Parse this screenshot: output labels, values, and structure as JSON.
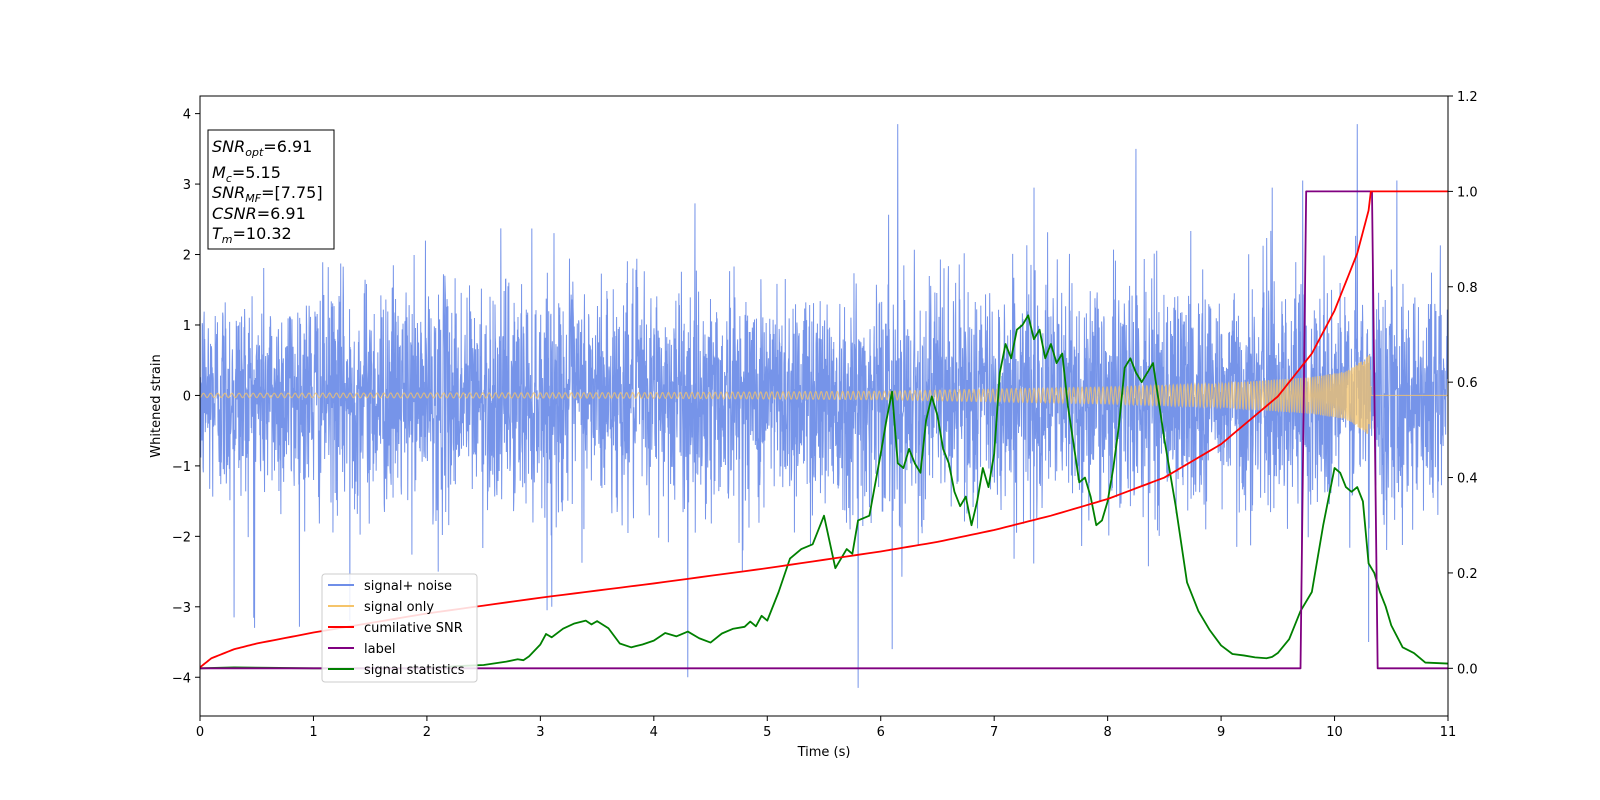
{
  "chart_data": {
    "type": "line",
    "title": "",
    "xlabel": "Time (s)",
    "ylabel": "Whitened strain",
    "y2label": "",
    "xlim": [
      0,
      11
    ],
    "ylim": [
      -4.55,
      4.25
    ],
    "y2lim": [
      -0.1,
      1.2
    ],
    "x_ticks": [
      0,
      1,
      2,
      3,
      4,
      5,
      6,
      7,
      8,
      9,
      10,
      11
    ],
    "y_ticks": [
      -4,
      -3,
      -2,
      -1,
      0,
      1,
      2,
      3,
      4
    ],
    "y2_ticks": [
      0.0,
      0.2,
      0.4,
      0.6,
      0.8,
      1.0,
      1.2
    ],
    "grid": false,
    "legend_position": "lower-left",
    "annotation": [
      {
        "key": "opt",
        "base": "SNR",
        "sub": "opt",
        "value": "=6.91"
      },
      {
        "key": "mc",
        "base": "M",
        "sub": "c",
        "value": "=5.15"
      },
      {
        "key": "mf",
        "base": "SNR",
        "sub": "MF",
        "value": "=[7.75]"
      },
      {
        "key": "csnr",
        "base": "CSNR",
        "sub": "",
        "value": "=6.91"
      },
      {
        "key": "tm",
        "base": "T",
        "sub": "m",
        "value": "=10.32"
      }
    ],
    "series": [
      {
        "name": "signal+ noise",
        "axis": "left",
        "color": "#6f8ee8",
        "kind": "noise",
        "sample_rate_hz": 409.6,
        "noise_amplitude": [
          [
            0,
            0.78
          ],
          [
            6,
            0.8
          ],
          [
            11,
            0.82
          ]
        ],
        "outliers": [
          [
            0.3,
            -3.15
          ],
          [
            0.48,
            -3.3
          ],
          [
            1.32,
            -3.2
          ],
          [
            2.1,
            -2.5
          ],
          [
            3.1,
            -3.0
          ],
          [
            4.3,
            -4.0
          ],
          [
            5.8,
            -4.15
          ],
          [
            6.15,
            3.85
          ],
          [
            6.1,
            -3.6
          ],
          [
            7.35,
            2.95
          ],
          [
            8.25,
            3.5
          ],
          [
            9.45,
            2.95
          ],
          [
            9.72,
            3.05
          ],
          [
            10.3,
            -3.5
          ],
          [
            10.55,
            3.05
          ],
          [
            10.2,
            3.85
          ]
        ]
      },
      {
        "name": "signal only",
        "axis": "left",
        "color": "#f5c46a",
        "kind": "chirp",
        "merger_time": 10.32,
        "amplitude": [
          [
            0,
            0.03
          ],
          [
            4,
            0.04
          ],
          [
            6,
            0.06
          ],
          [
            8,
            0.12
          ],
          [
            9,
            0.17
          ],
          [
            9.8,
            0.26
          ],
          [
            10.1,
            0.34
          ],
          [
            10.25,
            0.5
          ],
          [
            10.32,
            0.6
          ],
          [
            10.33,
            0
          ]
        ]
      },
      {
        "name": "cumilative SNR",
        "axis": "right",
        "color": "#ff0000",
        "x": [
          0,
          0.1,
          0.3,
          0.5,
          1,
          2,
          3,
          4,
          5,
          6,
          6.5,
          7,
          7.5,
          8,
          8.5,
          9,
          9.5,
          9.8,
          10,
          10.2,
          10.3,
          10.32,
          11
        ],
        "y": [
          0.002,
          0.021,
          0.04,
          0.052,
          0.075,
          0.115,
          0.148,
          0.178,
          0.21,
          0.245,
          0.265,
          0.29,
          0.32,
          0.355,
          0.4,
          0.47,
          0.57,
          0.66,
          0.75,
          0.87,
          0.96,
          1.0,
          1.0
        ]
      },
      {
        "name": "label",
        "axis": "right",
        "color": "#800080",
        "x": [
          0,
          9.7,
          9.75,
          10.33,
          10.38,
          11
        ],
        "y": [
          0,
          0,
          1,
          1,
          0,
          0
        ]
      },
      {
        "name": "signal statistics",
        "axis": "right",
        "color": "#008000",
        "x": [
          0,
          0.3,
          0.6,
          1,
          1.5,
          2,
          2.3,
          2.5,
          2.7,
          2.8,
          2.85,
          2.9,
          3.0,
          3.05,
          3.1,
          3.2,
          3.3,
          3.4,
          3.45,
          3.5,
          3.6,
          3.7,
          3.8,
          3.9,
          4.0,
          4.1,
          4.2,
          4.3,
          4.4,
          4.5,
          4.6,
          4.7,
          4.8,
          4.85,
          4.9,
          4.95,
          5.0,
          5.1,
          5.2,
          5.3,
          5.4,
          5.5,
          5.6,
          5.7,
          5.75,
          5.8,
          5.9,
          6.0,
          6.05,
          6.1,
          6.15,
          6.2,
          6.25,
          6.3,
          6.35,
          6.4,
          6.45,
          6.5,
          6.55,
          6.6,
          6.65,
          6.7,
          6.75,
          6.8,
          6.85,
          6.9,
          6.95,
          7.0,
          7.05,
          7.1,
          7.15,
          7.2,
          7.25,
          7.3,
          7.35,
          7.4,
          7.45,
          7.5,
          7.55,
          7.6,
          7.65,
          7.7,
          7.75,
          7.8,
          7.85,
          7.9,
          7.95,
          8.0,
          8.05,
          8.1,
          8.15,
          8.2,
          8.25,
          8.3,
          8.4,
          8.5,
          8.55,
          8.6,
          8.7,
          8.8,
          8.9,
          9.0,
          9.1,
          9.2,
          9.3,
          9.4,
          9.45,
          9.5,
          9.6,
          9.7,
          9.8,
          9.9,
          10.0,
          10.05,
          10.1,
          10.15,
          10.2,
          10.25,
          10.3,
          10.35,
          10.4,
          10.45,
          10.5,
          10.6,
          10.7,
          10.8,
          11.0
        ],
        "y": [
          0.0,
          0.002,
          0.001,
          0.0,
          0.0,
          0.0,
          0.005,
          0.007,
          0.014,
          0.019,
          0.017,
          0.025,
          0.05,
          0.072,
          0.065,
          0.083,
          0.094,
          0.1,
          0.092,
          0.099,
          0.084,
          0.052,
          0.044,
          0.05,
          0.058,
          0.074,
          0.067,
          0.077,
          0.063,
          0.054,
          0.073,
          0.083,
          0.087,
          0.098,
          0.088,
          0.11,
          0.1,
          0.16,
          0.23,
          0.25,
          0.26,
          0.32,
          0.21,
          0.25,
          0.24,
          0.31,
          0.32,
          0.45,
          0.52,
          0.58,
          0.43,
          0.42,
          0.46,
          0.43,
          0.41,
          0.52,
          0.57,
          0.53,
          0.46,
          0.43,
          0.37,
          0.34,
          0.36,
          0.3,
          0.35,
          0.42,
          0.38,
          0.45,
          0.62,
          0.68,
          0.65,
          0.71,
          0.72,
          0.74,
          0.69,
          0.71,
          0.65,
          0.68,
          0.64,
          0.66,
          0.55,
          0.47,
          0.39,
          0.4,
          0.36,
          0.3,
          0.31,
          0.35,
          0.42,
          0.51,
          0.63,
          0.65,
          0.62,
          0.6,
          0.64,
          0.48,
          0.41,
          0.34,
          0.18,
          0.12,
          0.08,
          0.048,
          0.03,
          0.027,
          0.023,
          0.021,
          0.024,
          0.032,
          0.061,
          0.12,
          0.16,
          0.3,
          0.42,
          0.41,
          0.38,
          0.37,
          0.38,
          0.35,
          0.22,
          0.2,
          0.16,
          0.13,
          0.09,
          0.044,
          0.032,
          0.012,
          0.01
        ]
      }
    ]
  }
}
